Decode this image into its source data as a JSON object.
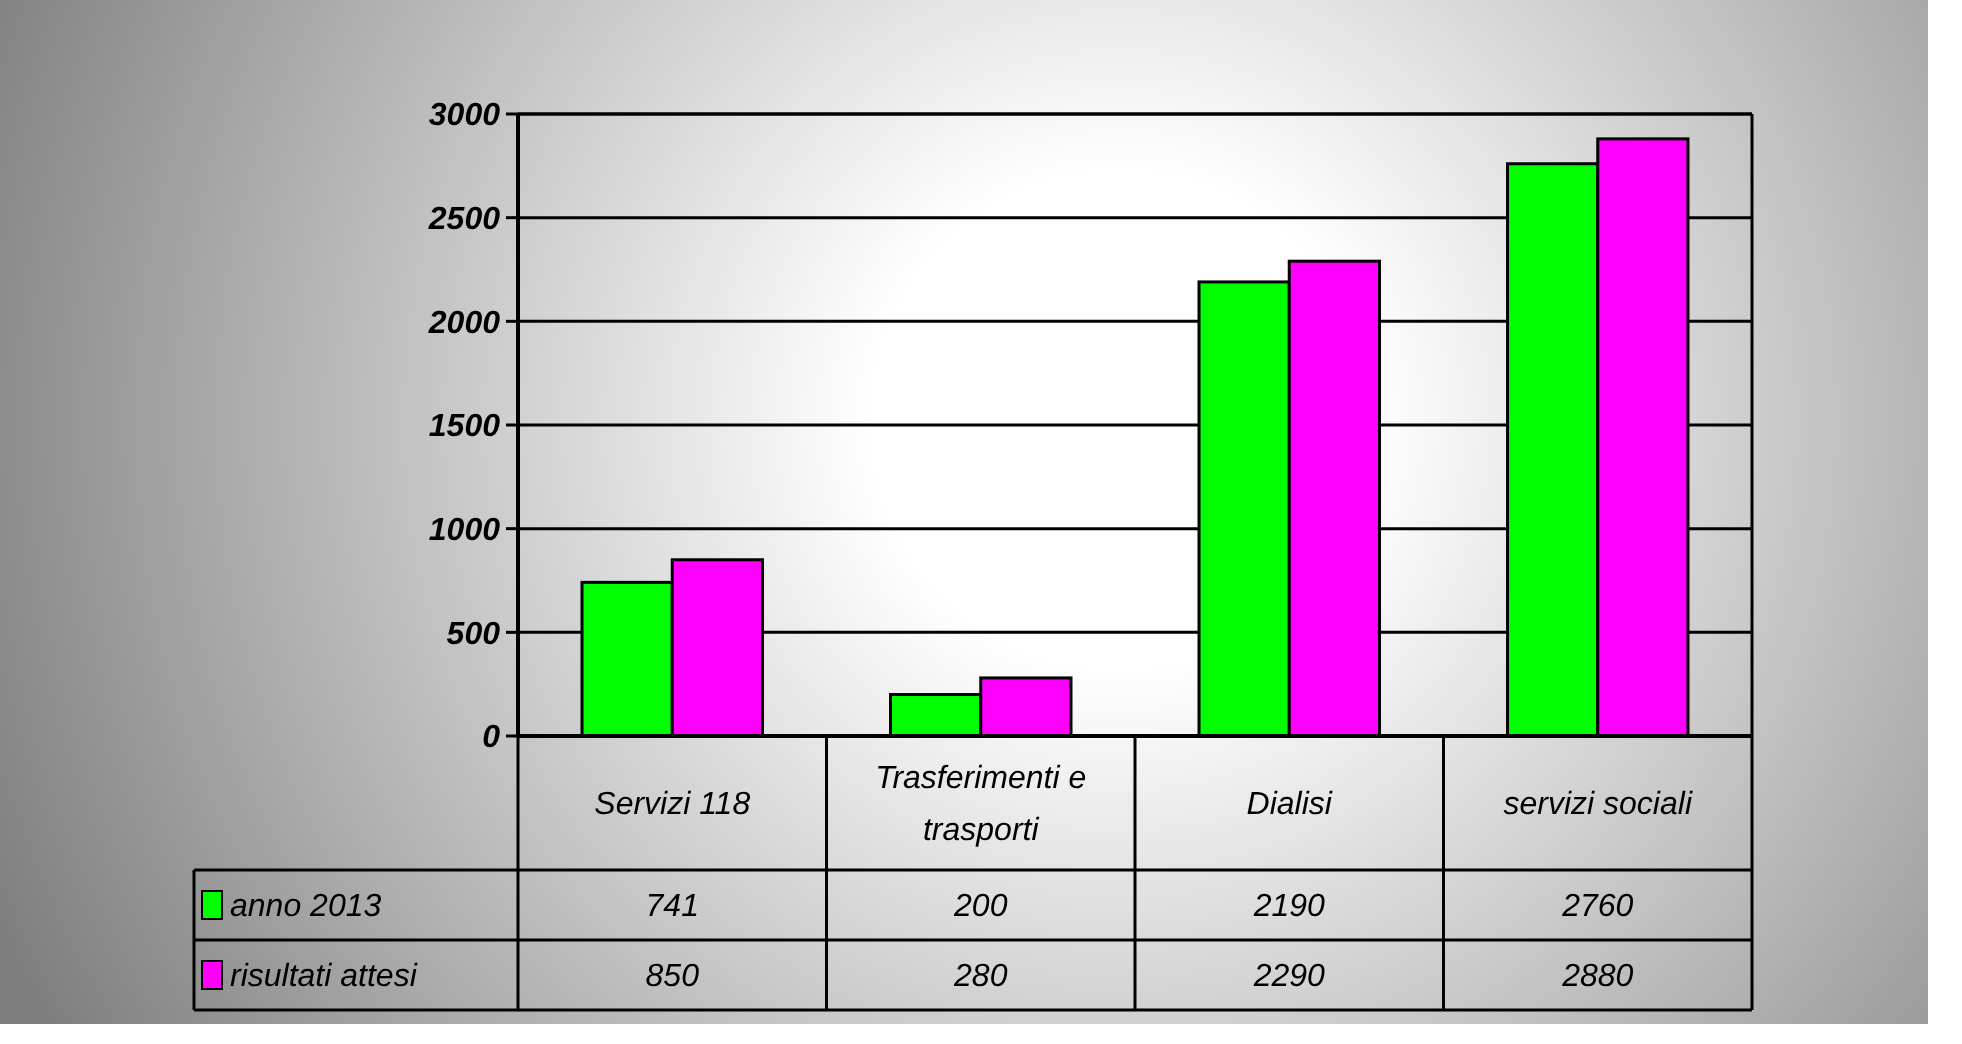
{
  "chart_data": {
    "type": "bar",
    "categories": [
      "Servizi 118",
      "Trasferimenti e trasporti",
      "Dialisi",
      "servizi sociali"
    ],
    "series": [
      {
        "name": "anno 2013",
        "color": "#00ff00",
        "values": [
          741,
          200,
          2190,
          2760
        ]
      },
      {
        "name": "risultati attesi",
        "color": "#ff00ff",
        "values": [
          850,
          280,
          2290,
          2880
        ]
      }
    ],
    "ylim": [
      0,
      3000
    ],
    "yticks": [
      0,
      500,
      1000,
      1500,
      2000,
      2500,
      3000
    ],
    "grid": "y",
    "legend": "bottom",
    "data_labels": true
  }
}
